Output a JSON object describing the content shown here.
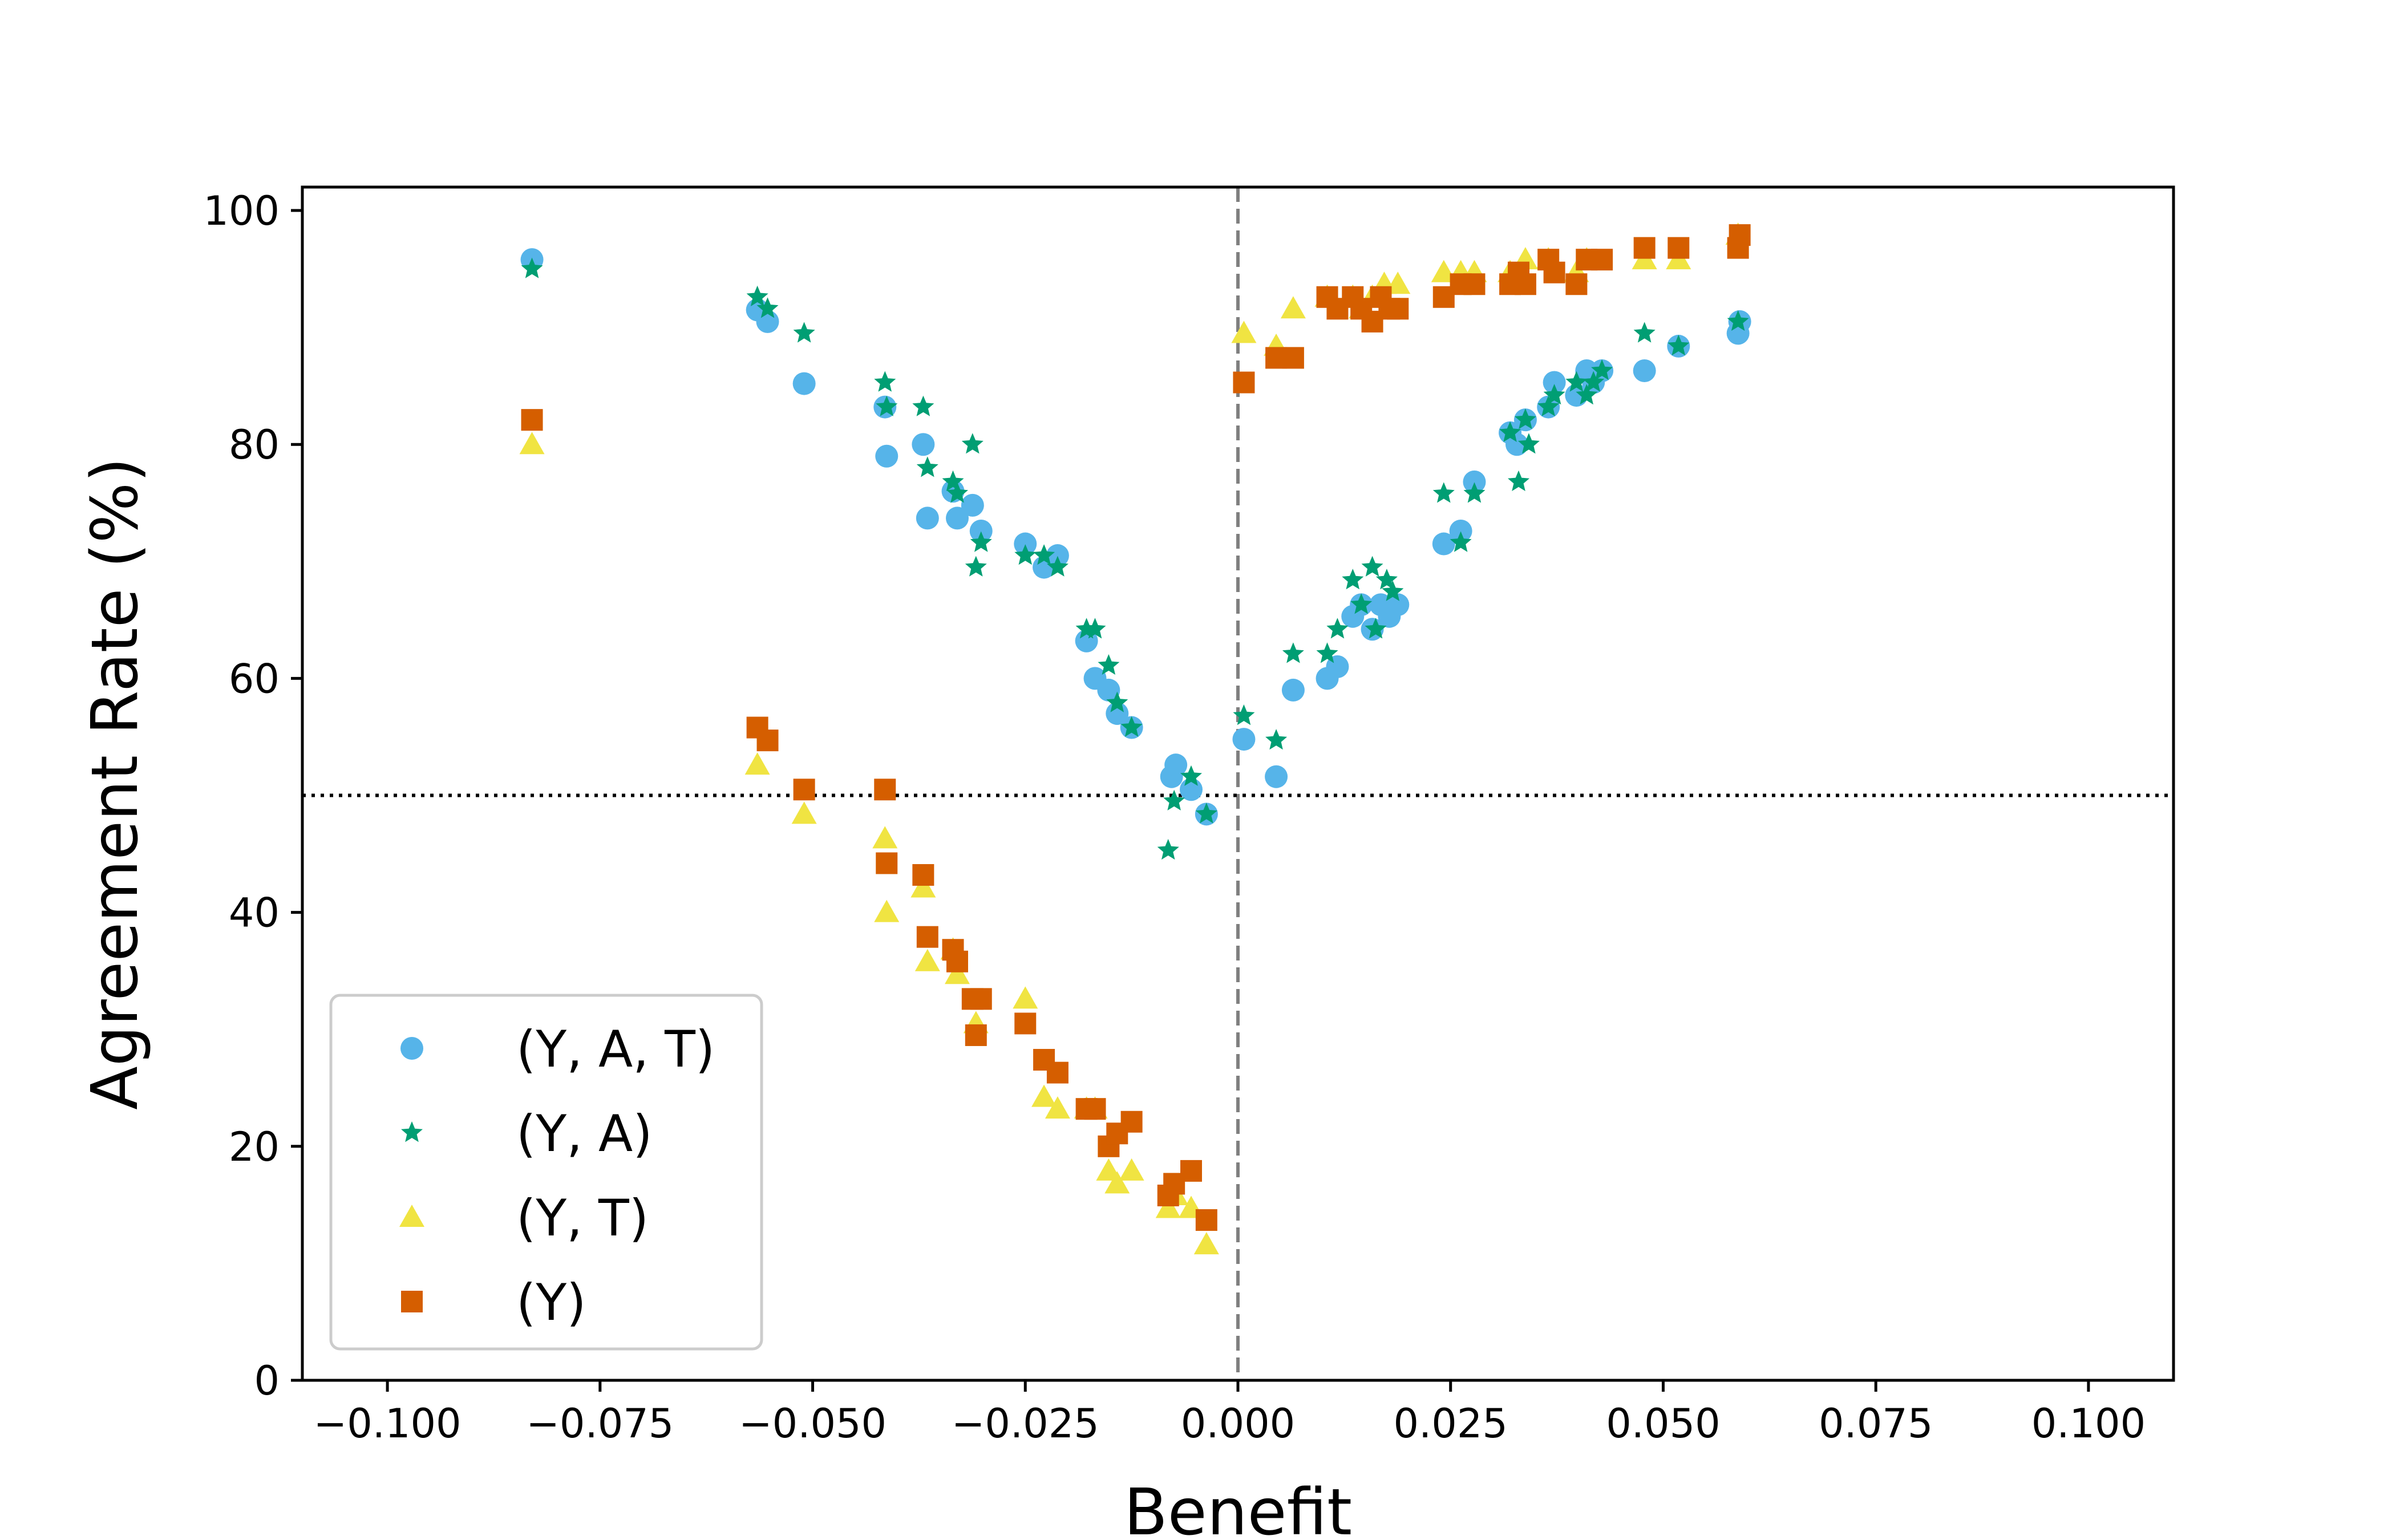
{
  "chart_data": {
    "type": "scatter",
    "title": "",
    "xlabel": "Benefit",
    "ylabel": "Agreement Rate (%)",
    "xlim": [
      -0.11,
      0.11
    ],
    "ylim": [
      0,
      102
    ],
    "xticks": [
      -0.1,
      -0.075,
      -0.05,
      -0.025,
      0.0,
      0.025,
      0.05,
      0.075,
      0.1
    ],
    "xtick_labels": [
      "−0.100",
      "−0.075",
      "−0.050",
      "−0.025",
      "0.000",
      "0.025",
      "0.050",
      "0.075",
      "0.100"
    ],
    "yticks": [
      0,
      20,
      40,
      60,
      80,
      100
    ],
    "ytick_labels": [
      "0",
      "20",
      "40",
      "60",
      "80",
      "100"
    ],
    "grid": false,
    "legend_position": "lower-left",
    "reference_lines": [
      {
        "orientation": "vertical",
        "value": 0.0,
        "style": "dashed",
        "color": "#808080"
      },
      {
        "orientation": "horizontal",
        "value": 50,
        "style": "dotted",
        "color": "#000000"
      }
    ],
    "series": [
      {
        "name": "(Y, A, T)",
        "marker": "circle",
        "color": "#56B4E9",
        "points": [
          [
            -0.083,
            95.8
          ],
          [
            -0.0565,
            91.5
          ],
          [
            -0.0553,
            90.5
          ],
          [
            -0.051,
            85.2
          ],
          [
            -0.0415,
            83.2
          ],
          [
            -0.0413,
            79.0
          ],
          [
            -0.037,
            80.0
          ],
          [
            -0.0365,
            73.7
          ],
          [
            -0.0335,
            76.0
          ],
          [
            -0.033,
            73.7
          ],
          [
            -0.0312,
            74.8
          ],
          [
            -0.0302,
            72.6
          ],
          [
            -0.025,
            71.5
          ],
          [
            -0.0228,
            69.5
          ],
          [
            -0.0212,
            70.5
          ],
          [
            -0.0178,
            63.2
          ],
          [
            -0.0168,
            60.0
          ],
          [
            -0.0152,
            59.0
          ],
          [
            -0.0142,
            57.0
          ],
          [
            -0.0125,
            55.8
          ],
          [
            -0.0078,
            51.6
          ],
          [
            -0.0073,
            52.6
          ],
          [
            -0.0055,
            50.5
          ],
          [
            -0.0037,
            48.4
          ],
          [
            0.0007,
            54.8
          ],
          [
            0.0045,
            51.6
          ],
          [
            0.0065,
            59.0
          ],
          [
            0.0105,
            60.0
          ],
          [
            0.0117,
            61.0
          ],
          [
            0.0135,
            65.3
          ],
          [
            0.0145,
            66.3
          ],
          [
            0.0158,
            64.2
          ],
          [
            0.0168,
            66.3
          ],
          [
            0.0178,
            65.3
          ],
          [
            0.0188,
            66.3
          ],
          [
            0.0242,
            71.5
          ],
          [
            0.0262,
            72.6
          ],
          [
            0.0278,
            76.8
          ],
          [
            0.032,
            81.0
          ],
          [
            0.0328,
            80.0
          ],
          [
            0.0338,
            82.1
          ],
          [
            0.0365,
            83.2
          ],
          [
            0.0372,
            85.3
          ],
          [
            0.0398,
            84.2
          ],
          [
            0.041,
            86.3
          ],
          [
            0.0418,
            85.3
          ],
          [
            0.0428,
            86.3
          ],
          [
            0.0478,
            86.3
          ],
          [
            0.0518,
            88.4
          ],
          [
            0.0588,
            89.5
          ],
          [
            0.059,
            90.5
          ]
        ]
      },
      {
        "name": "(Y, A)",
        "marker": "star",
        "color": "#009E73",
        "points": [
          [
            -0.083,
            95.0
          ],
          [
            -0.0565,
            92.6
          ],
          [
            -0.0553,
            91.6
          ],
          [
            -0.051,
            89.5
          ],
          [
            -0.0415,
            85.3
          ],
          [
            -0.0413,
            83.2
          ],
          [
            -0.037,
            83.2
          ],
          [
            -0.0365,
            78.0
          ],
          [
            -0.0335,
            76.8
          ],
          [
            -0.033,
            75.8
          ],
          [
            -0.0312,
            80.0
          ],
          [
            -0.0308,
            69.5
          ],
          [
            -0.0302,
            71.6
          ],
          [
            -0.025,
            70.5
          ],
          [
            -0.0228,
            70.5
          ],
          [
            -0.0212,
            69.5
          ],
          [
            -0.0178,
            64.2
          ],
          [
            -0.0168,
            64.2
          ],
          [
            -0.0152,
            61.1
          ],
          [
            -0.0142,
            57.9
          ],
          [
            -0.0125,
            55.8
          ],
          [
            -0.0082,
            45.3
          ],
          [
            -0.0075,
            49.5
          ],
          [
            -0.0055,
            51.6
          ],
          [
            -0.0037,
            48.4
          ],
          [
            0.0007,
            56.8
          ],
          [
            0.0045,
            54.7
          ],
          [
            0.0065,
            62.1
          ],
          [
            0.0105,
            62.1
          ],
          [
            0.0117,
            64.2
          ],
          [
            0.0135,
            68.4
          ],
          [
            0.0145,
            66.3
          ],
          [
            0.0158,
            69.5
          ],
          [
            0.0162,
            64.2
          ],
          [
            0.0175,
            68.4
          ],
          [
            0.0182,
            67.4
          ],
          [
            0.0242,
            75.8
          ],
          [
            0.0262,
            71.6
          ],
          [
            0.0278,
            75.8
          ],
          [
            0.032,
            81.0
          ],
          [
            0.033,
            76.8
          ],
          [
            0.0338,
            82.1
          ],
          [
            0.0342,
            80.0
          ],
          [
            0.0365,
            83.2
          ],
          [
            0.0372,
            84.2
          ],
          [
            0.0398,
            85.3
          ],
          [
            0.041,
            84.2
          ],
          [
            0.0418,
            85.3
          ],
          [
            0.0428,
            86.3
          ],
          [
            0.0478,
            89.5
          ],
          [
            0.0518,
            88.4
          ],
          [
            0.0588,
            90.5
          ]
        ]
      },
      {
        "name": "(Y, T)",
        "marker": "triangle",
        "color": "#F0E442",
        "points": [
          [
            -0.083,
            80.0
          ],
          [
            -0.0565,
            52.6
          ],
          [
            -0.051,
            48.4
          ],
          [
            -0.0415,
            46.3
          ],
          [
            -0.0413,
            40.0
          ],
          [
            -0.037,
            42.1
          ],
          [
            -0.0365,
            35.8
          ],
          [
            -0.0335,
            36.8
          ],
          [
            -0.033,
            34.7
          ],
          [
            -0.0308,
            30.5
          ],
          [
            -0.025,
            32.6
          ],
          [
            -0.0228,
            24.2
          ],
          [
            -0.0212,
            23.2
          ],
          [
            -0.0178,
            23.2
          ],
          [
            -0.0168,
            23.2
          ],
          [
            -0.0152,
            17.9
          ],
          [
            -0.0142,
            16.8
          ],
          [
            -0.0125,
            17.9
          ],
          [
            -0.0082,
            14.7
          ],
          [
            -0.0073,
            15.8
          ],
          [
            -0.0055,
            14.7
          ],
          [
            -0.0037,
            11.6
          ],
          [
            0.0007,
            89.5
          ],
          [
            0.0045,
            88.4
          ],
          [
            0.0065,
            91.6
          ],
          [
            0.0105,
            92.6
          ],
          [
            0.0135,
            92.6
          ],
          [
            0.0145,
            91.6
          ],
          [
            0.0158,
            92.6
          ],
          [
            0.0172,
            93.7
          ],
          [
            0.0188,
            93.7
          ],
          [
            0.0242,
            94.7
          ],
          [
            0.0262,
            94.7
          ],
          [
            0.0278,
            94.7
          ],
          [
            0.032,
            94.7
          ],
          [
            0.0338,
            95.8
          ],
          [
            0.0365,
            95.8
          ],
          [
            0.0398,
            94.7
          ],
          [
            0.041,
            95.8
          ],
          [
            0.0478,
            95.8
          ],
          [
            0.0518,
            95.8
          ],
          [
            0.0588,
            97.9
          ]
        ]
      },
      {
        "name": "(Y)",
        "marker": "square",
        "color": "#D55E00",
        "points": [
          [
            -0.083,
            82.1
          ],
          [
            -0.0565,
            55.8
          ],
          [
            -0.0553,
            54.7
          ],
          [
            -0.051,
            50.5
          ],
          [
            -0.0415,
            50.5
          ],
          [
            -0.0413,
            44.2
          ],
          [
            -0.037,
            43.2
          ],
          [
            -0.0365,
            37.9
          ],
          [
            -0.0335,
            36.8
          ],
          [
            -0.033,
            35.8
          ],
          [
            -0.0312,
            32.6
          ],
          [
            -0.0308,
            29.5
          ],
          [
            -0.0302,
            32.6
          ],
          [
            -0.025,
            30.5
          ],
          [
            -0.0228,
            27.4
          ],
          [
            -0.0212,
            26.3
          ],
          [
            -0.0178,
            23.2
          ],
          [
            -0.0168,
            23.2
          ],
          [
            -0.0152,
            20.0
          ],
          [
            -0.0142,
            21.1
          ],
          [
            -0.0125,
            22.1
          ],
          [
            -0.0082,
            15.8
          ],
          [
            -0.0075,
            16.8
          ],
          [
            -0.0055,
            17.9
          ],
          [
            -0.0037,
            13.7
          ],
          [
            0.0007,
            85.3
          ],
          [
            0.0045,
            87.4
          ],
          [
            0.0065,
            87.4
          ],
          [
            0.0105,
            92.6
          ],
          [
            0.0117,
            91.6
          ],
          [
            0.0135,
            92.6
          ],
          [
            0.0145,
            91.6
          ],
          [
            0.0158,
            90.5
          ],
          [
            0.0168,
            92.6
          ],
          [
            0.0178,
            91.6
          ],
          [
            0.0188,
            91.6
          ],
          [
            0.0242,
            92.6
          ],
          [
            0.0262,
            93.7
          ],
          [
            0.0278,
            93.7
          ],
          [
            0.032,
            93.7
          ],
          [
            0.033,
            94.7
          ],
          [
            0.0338,
            93.7
          ],
          [
            0.0365,
            95.8
          ],
          [
            0.0372,
            94.7
          ],
          [
            0.0398,
            93.7
          ],
          [
            0.041,
            95.8
          ],
          [
            0.0428,
            95.8
          ],
          [
            0.0478,
            96.8
          ],
          [
            0.0518,
            96.8
          ],
          [
            0.0588,
            96.8
          ],
          [
            0.059,
            97.9
          ]
        ]
      }
    ]
  }
}
